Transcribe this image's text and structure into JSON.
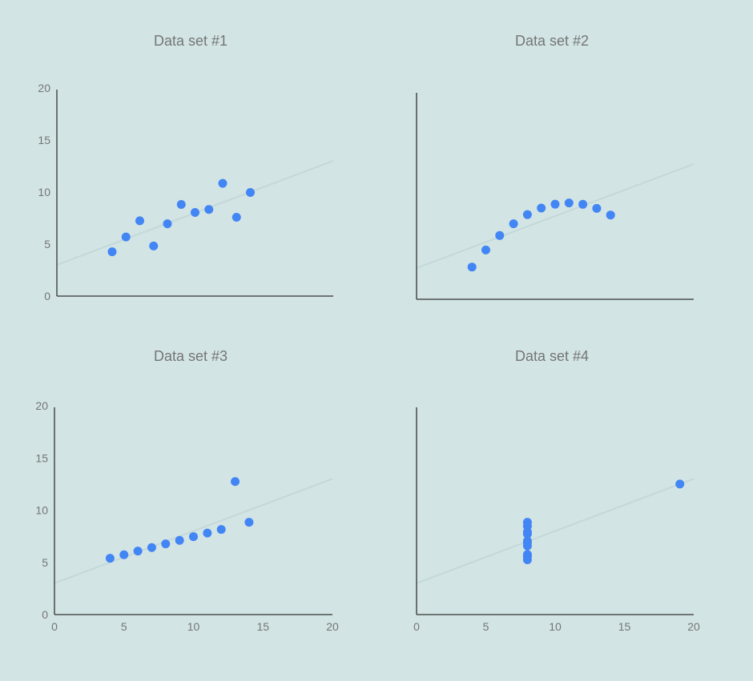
{
  "colors": {
    "background": "#d2e4e4",
    "point": "#4285f4",
    "trendline": "#c4d8da",
    "axis": "#333333",
    "text": "#757575"
  },
  "chart_data": [
    {
      "type": "scatter",
      "title": "Data set #1",
      "xlim": [
        0,
        20
      ],
      "ylim": [
        0,
        20
      ],
      "x_ticks": [],
      "y_ticks": [
        "0",
        "5",
        "10",
        "15",
        "20"
      ],
      "trendline": {
        "intercept": 3,
        "slope": 0.5
      },
      "points": [
        {
          "x": 4,
          "y": 4.26
        },
        {
          "x": 5,
          "y": 5.68
        },
        {
          "x": 6,
          "y": 7.24
        },
        {
          "x": 7,
          "y": 4.82
        },
        {
          "x": 8,
          "y": 6.95
        },
        {
          "x": 9,
          "y": 8.81
        },
        {
          "x": 10,
          "y": 8.04
        },
        {
          "x": 11,
          "y": 8.33
        },
        {
          "x": 12,
          "y": 10.84
        },
        {
          "x": 13,
          "y": 7.58
        },
        {
          "x": 14,
          "y": 9.96
        }
      ]
    },
    {
      "type": "scatter",
      "title": "Data set #2",
      "xlim": [
        0,
        20
      ],
      "ylim": [
        0,
        20
      ],
      "x_ticks": [],
      "y_ticks": [],
      "trendline": {
        "intercept": 3,
        "slope": 0.5
      },
      "points": [
        {
          "x": 4,
          "y": 3.1
        },
        {
          "x": 5,
          "y": 4.74
        },
        {
          "x": 6,
          "y": 6.13
        },
        {
          "x": 7,
          "y": 7.26
        },
        {
          "x": 8,
          "y": 8.14
        },
        {
          "x": 9,
          "y": 8.77
        },
        {
          "x": 10,
          "y": 9.14
        },
        {
          "x": 11,
          "y": 9.26
        },
        {
          "x": 12,
          "y": 9.13
        },
        {
          "x": 13,
          "y": 8.74
        },
        {
          "x": 14,
          "y": 8.1
        }
      ]
    },
    {
      "type": "scatter",
      "title": "Data set #3",
      "xlim": [
        0,
        20
      ],
      "ylim": [
        0,
        20
      ],
      "x_ticks": [
        "0",
        "5",
        "10",
        "15",
        "20"
      ],
      "y_ticks": [
        "0",
        "5",
        "10",
        "15",
        "20"
      ],
      "trendline": {
        "intercept": 3,
        "slope": 0.5
      },
      "points": [
        {
          "x": 4,
          "y": 5.39
        },
        {
          "x": 5,
          "y": 5.73
        },
        {
          "x": 6,
          "y": 6.08
        },
        {
          "x": 7,
          "y": 6.42
        },
        {
          "x": 8,
          "y": 6.77
        },
        {
          "x": 9,
          "y": 7.11
        },
        {
          "x": 10,
          "y": 7.46
        },
        {
          "x": 11,
          "y": 7.81
        },
        {
          "x": 12,
          "y": 8.15
        },
        {
          "x": 13,
          "y": 12.74
        },
        {
          "x": 14,
          "y": 8.84
        }
      ]
    },
    {
      "type": "scatter",
      "title": "Data set #4",
      "xlim": [
        0,
        20
      ],
      "ylim": [
        0,
        20
      ],
      "x_ticks": [
        "0",
        "5",
        "10",
        "15",
        "20"
      ],
      "y_ticks": [],
      "trendline": {
        "intercept": 3,
        "slope": 0.5
      },
      "points": [
        {
          "x": 8,
          "y": 6.58
        },
        {
          "x": 8,
          "y": 5.76
        },
        {
          "x": 8,
          "y": 7.71
        },
        {
          "x": 8,
          "y": 8.84
        },
        {
          "x": 8,
          "y": 8.47
        },
        {
          "x": 8,
          "y": 7.04
        },
        {
          "x": 8,
          "y": 5.25
        },
        {
          "x": 19,
          "y": 12.5
        },
        {
          "x": 8,
          "y": 5.56
        },
        {
          "x": 8,
          "y": 7.91
        },
        {
          "x": 8,
          "y": 6.89
        }
      ]
    }
  ]
}
